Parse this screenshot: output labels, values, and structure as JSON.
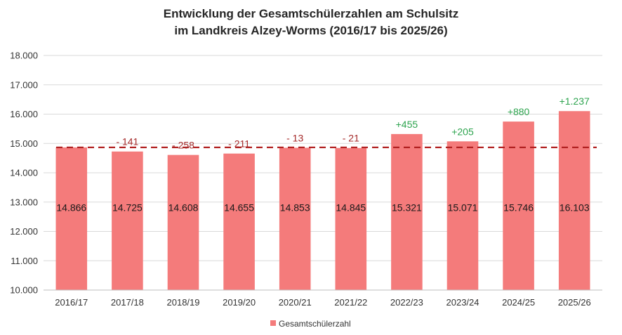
{
  "chart_data": {
    "type": "bar",
    "title_line1": "Entwicklung der Gesamtschülerzahlen am Schulsitz",
    "title_line2": "im Landkreis Alzey-Worms (2016/17 bis 2025/26)",
    "categories": [
      "2016/17",
      "2017/18",
      "2018/19",
      "2019/20",
      "2020/21",
      "2021/22",
      "2022/23",
      "2023/24",
      "2024/25",
      "2025/26"
    ],
    "series": [
      {
        "name": "Gesamtschülerzahl",
        "values": [
          14866,
          14725,
          14608,
          14655,
          14853,
          14845,
          15321,
          15071,
          15746,
          16103
        ],
        "value_labels": [
          "14.866",
          "14.725",
          "14.608",
          "14.655",
          "14.853",
          "14.845",
          "15.321",
          "15.071",
          "15.746",
          "16.103"
        ],
        "color": "#f47b7b"
      }
    ],
    "diff_labels": [
      "",
      "- 141",
      "- 258",
      "- 211",
      "- 13",
      "- 21",
      "+455",
      "+205",
      "+880",
      "+1.237"
    ],
    "negative_color": "#a52a2a",
    "positive_color": "#2ea44f",
    "reference_line": {
      "value": 14866,
      "color": "#b22222",
      "style": "dashed"
    },
    "ylim": [
      10000,
      18000
    ],
    "yticks": [
      10000,
      11000,
      12000,
      13000,
      14000,
      15000,
      16000,
      17000,
      18000
    ],
    "ytick_labels": [
      "10.000",
      "11.000",
      "12.000",
      "13.000",
      "14.000",
      "15.000",
      "16.000",
      "17.000",
      "18.000"
    ],
    "grid": true,
    "legend_position": "bottom-center",
    "xlabel": "",
    "ylabel": ""
  }
}
